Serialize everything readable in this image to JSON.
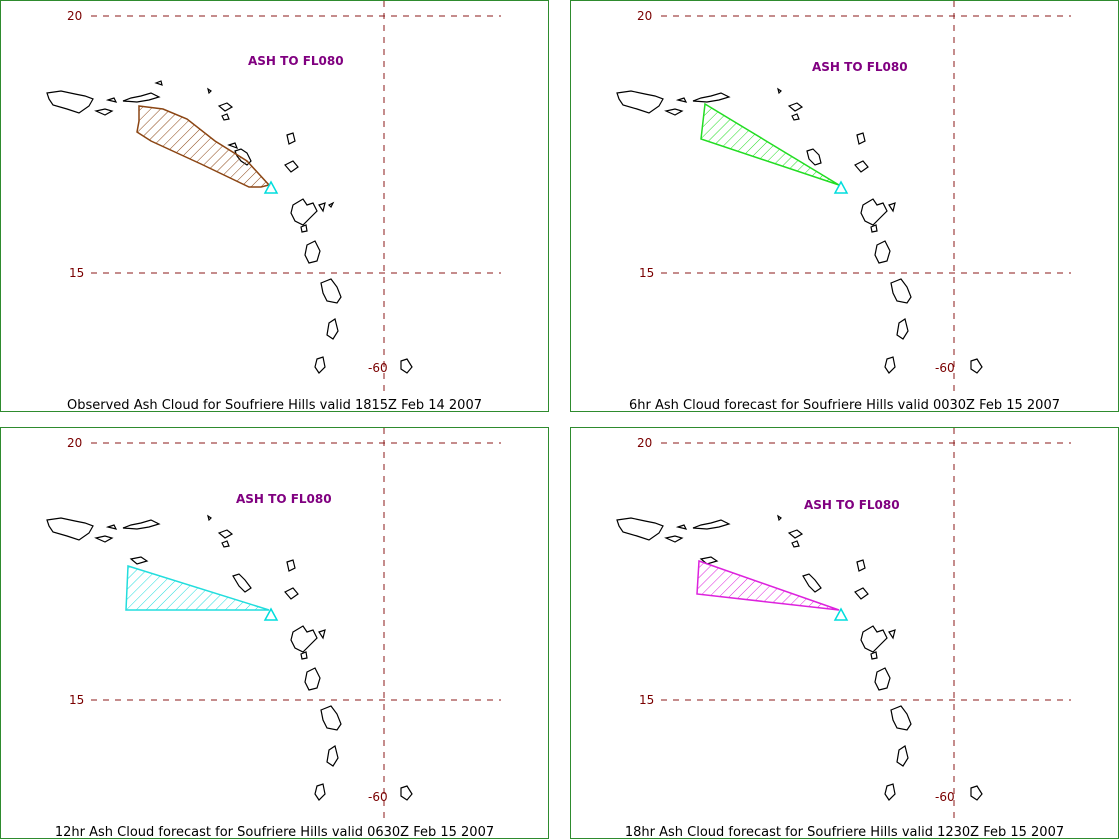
{
  "panels": [
    {
      "ash_label": "ASH TO FL080",
      "caption": "Observed Ash Cloud for Soufriere  Hills valid 1815Z Feb 14 2007",
      "cloud_color": "#8B4513",
      "lat_labels": [
        "20",
        "15"
      ],
      "lon_label": "-60"
    },
    {
      "ash_label": "ASH TO FL080",
      "caption": "6hr Ash Cloud forecast for Soufriere  Hills valid 0030Z Feb 15 2007",
      "cloud_color": "#22DD22",
      "lat_labels": [
        "20",
        "15"
      ],
      "lon_label": "-60"
    },
    {
      "ash_label": "ASH TO FL080",
      "caption": "12hr Ash Cloud forecast for Soufriere  Hills valid 0630Z Feb 15 2007",
      "cloud_color": "#22DDDD",
      "lat_labels": [
        "20",
        "15"
      ],
      "lon_label": "-60"
    },
    {
      "ash_label": "ASH TO FL080",
      "caption": "18hr Ash Cloud forecast for Soufriere  Hills valid 1230Z Feb 15 2007",
      "cloud_color": "#DD22DD",
      "lat_labels": [
        "20",
        "15"
      ],
      "lon_label": "-60"
    }
  ],
  "volcano_marker_color": "#00DDDD",
  "grid_color": "#8B1A1A",
  "coast_color": "#000000"
}
